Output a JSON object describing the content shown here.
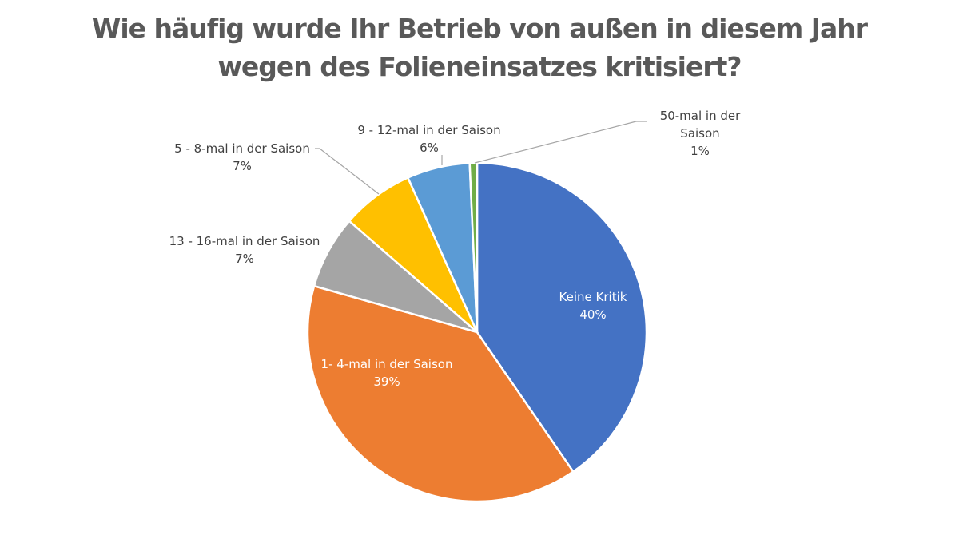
{
  "chart_data": {
    "type": "pie",
    "title_line1": "Wie häufig wurde Ihr Betrieb von außen in diesem Jahr",
    "title_line2": "wegen des Folieneinsatzes kritisiert?",
    "start": "top",
    "direction": "clockwise",
    "slices": [
      {
        "label": "Keine Kritik",
        "percent_label": "40%",
        "value": 40.4,
        "color": "#4472C4",
        "label_inside": true
      },
      {
        "label": "1- 4-mal in der Saison",
        "percent_label": "39%",
        "value": 39.0,
        "color": "#ED7D31",
        "label_inside": true
      },
      {
        "label": "13 - 16-mal in der Saison",
        "percent_label": "7%",
        "value": 7.0,
        "color": "#A5A5A5",
        "label_inside": false
      },
      {
        "label": "5 - 8-mal in der Saison",
        "percent_label": "7%",
        "value": 6.9,
        "color": "#FFC000",
        "label_inside": false
      },
      {
        "label": "9 - 12-mal in der Saison",
        "percent_label": "6%",
        "value": 6.0,
        "color": "#5B9BD5",
        "label_inside": false
      },
      {
        "label_lines": [
          "50-mal in der",
          "Saison"
        ],
        "label": "50-mal in der Saison",
        "percent_label": "1%",
        "value": 0.7,
        "color": "#70AD47",
        "label_inside": false
      }
    ],
    "leader_line_color": "#A6A6A6"
  }
}
